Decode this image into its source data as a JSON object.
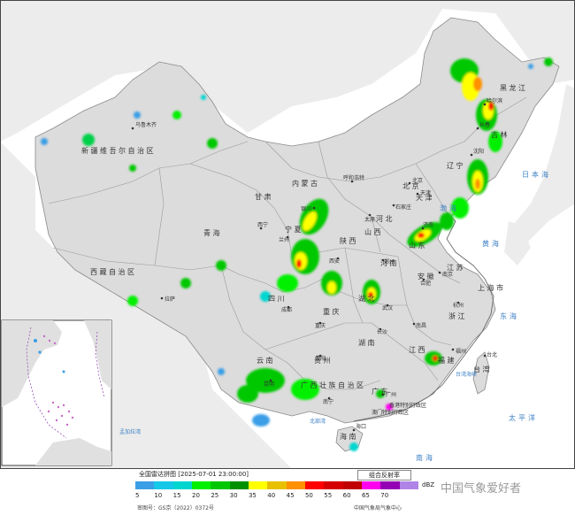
{
  "title": "全国雷达拼图 [2025-07-01 23:00:00]",
  "product": "组合反射率",
  "unit": "dBZ",
  "legend": {
    "values": [
      "5",
      "10",
      "15",
      "20",
      "25",
      "30",
      "35",
      "40",
      "45",
      "50",
      "55",
      "60",
      "65",
      "70"
    ],
    "colors": [
      "#3a9ee6",
      "#16c8e8",
      "#00d5d0",
      "#00f000",
      "#00c800",
      "#009000",
      "#ffff00",
      "#e8c000",
      "#ff9000",
      "#ff0000",
      "#d60000",
      "#c00000",
      "#ff00f0",
      "#9600b4",
      "#b084e6"
    ]
  },
  "review_number": "审图号：GS京（2022）0372号",
  "organization": "中国气象局气象中心",
  "watermark": "中国气象爱好者",
  "regions": [
    "新疆维吾尔自治区",
    "西藏自治区",
    "青海",
    "甘肃",
    "内蒙古",
    "黑龙江",
    "吉林",
    "辽宁",
    "河北",
    "山西",
    "陕西",
    "宁夏",
    "四川",
    "重庆",
    "湖北",
    "河南",
    "山东",
    "江苏",
    "安徽",
    "浙江",
    "上海市",
    "江西",
    "湖南",
    "贵州",
    "云南",
    "广西壮族自治区",
    "广东",
    "福建",
    "海南",
    "台湾",
    "北京",
    "天津",
    "香港特别行政区",
    "澳门特别行政区"
  ],
  "cities": [
    "乌鲁木齐",
    "拉萨",
    "西宁",
    "兰州",
    "银川",
    "呼和浩特",
    "哈尔滨",
    "长春",
    "沈阳",
    "北京",
    "天津",
    "石家庄",
    "太原",
    "西安",
    "郑州",
    "济南",
    "南京",
    "合肥",
    "杭州",
    "武汉",
    "长沙",
    "南昌",
    "福州",
    "成都",
    "重庆",
    "贵阳",
    "昆明",
    "南宁",
    "广州",
    "海口",
    "台北"
  ],
  "seas": [
    "渤海",
    "黄海",
    "东海",
    "南海",
    "日本海",
    "太平洋",
    "台湾海峡",
    "孟加拉湾",
    "北部湾"
  ],
  "colors": {
    "land": "#e6e6e6",
    "sea": "#ffffff",
    "border": "#8a8a8a",
    "frame": "#444444"
  }
}
